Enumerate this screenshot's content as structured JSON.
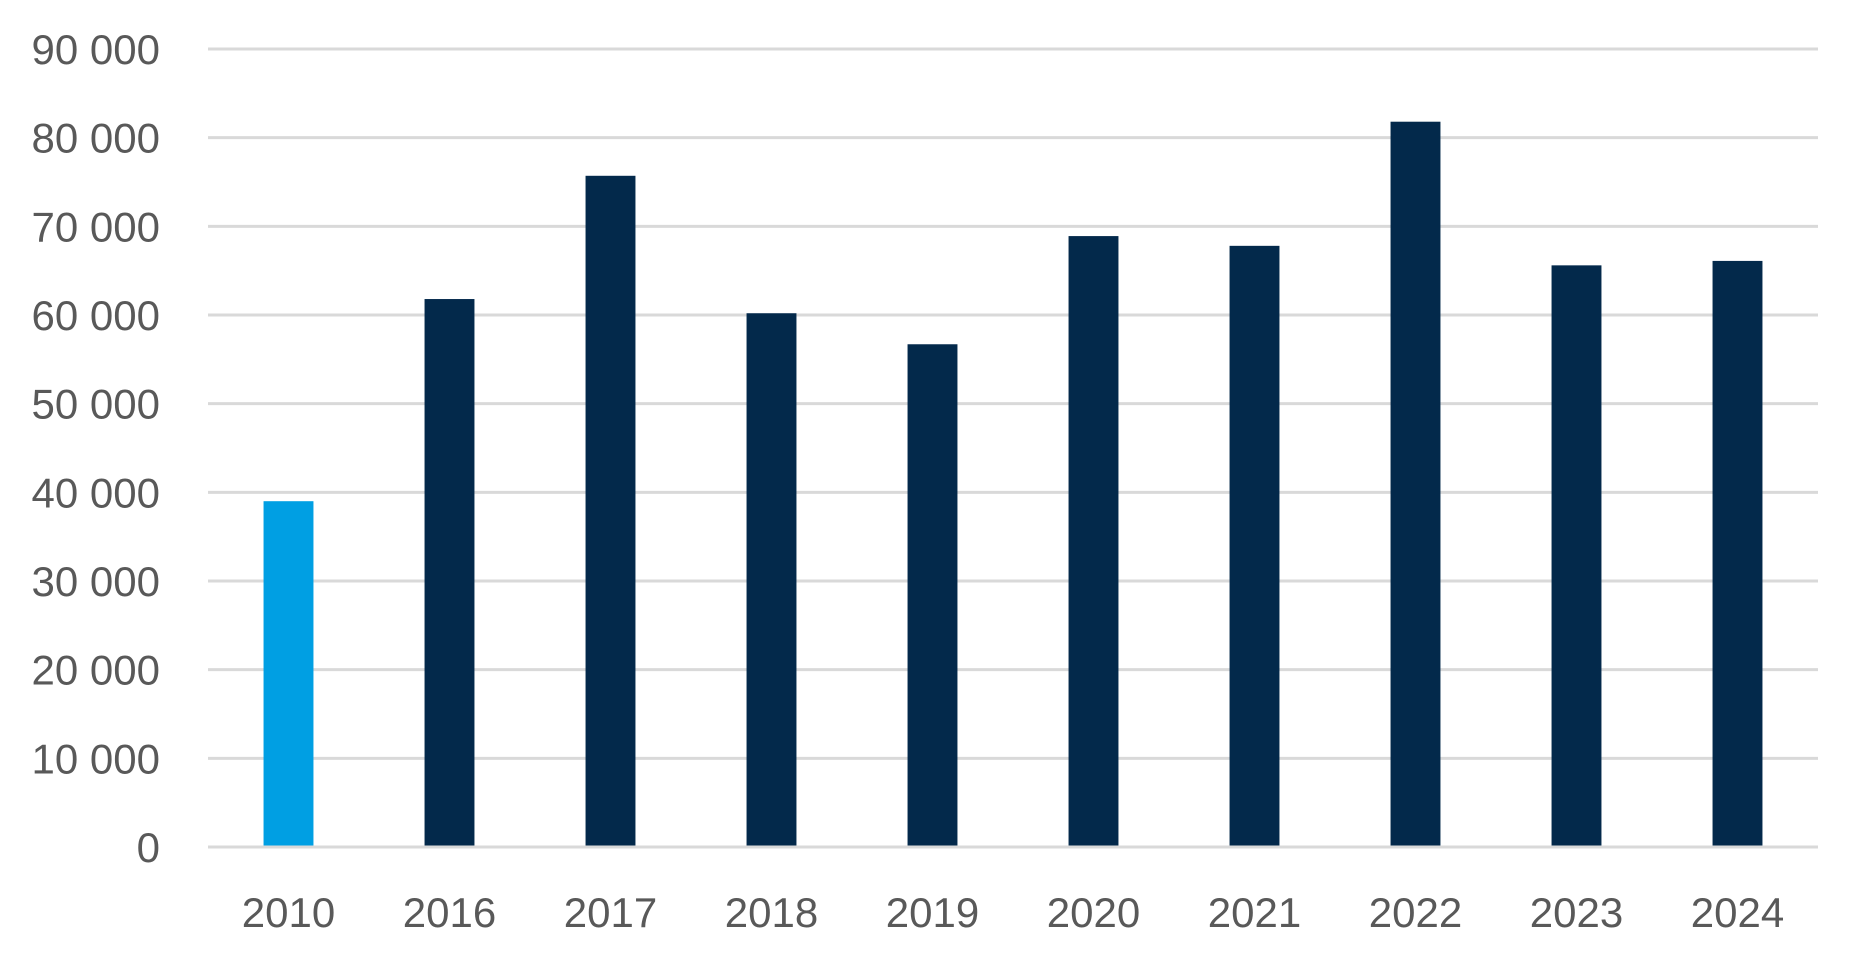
{
  "chart_data": {
    "type": "bar",
    "title": "",
    "xlabel": "",
    "ylabel": "",
    "categories": [
      "2010",
      "2016",
      "2017",
      "2018",
      "2019",
      "2020",
      "2021",
      "2022",
      "2023",
      "2024"
    ],
    "values": [
      39000,
      61800,
      75700,
      60200,
      56700,
      68900,
      67800,
      81800,
      65600,
      66100
    ],
    "bar_colors": [
      "#009fe3",
      "#03294b",
      "#03294b",
      "#03294b",
      "#03294b",
      "#03294b",
      "#03294b",
      "#03294b",
      "#03294b",
      "#03294b"
    ],
    "ylim": [
      0,
      90000
    ],
    "y_ticks": [
      0,
      10000,
      20000,
      30000,
      40000,
      50000,
      60000,
      70000,
      80000,
      90000
    ],
    "y_tick_labels": [
      "0",
      "10 000",
      "20 000",
      "30 000",
      "40 000",
      "50 000",
      "60 000",
      "70 000",
      "80 000",
      "90 000"
    ],
    "grid": true,
    "legend": "none"
  }
}
